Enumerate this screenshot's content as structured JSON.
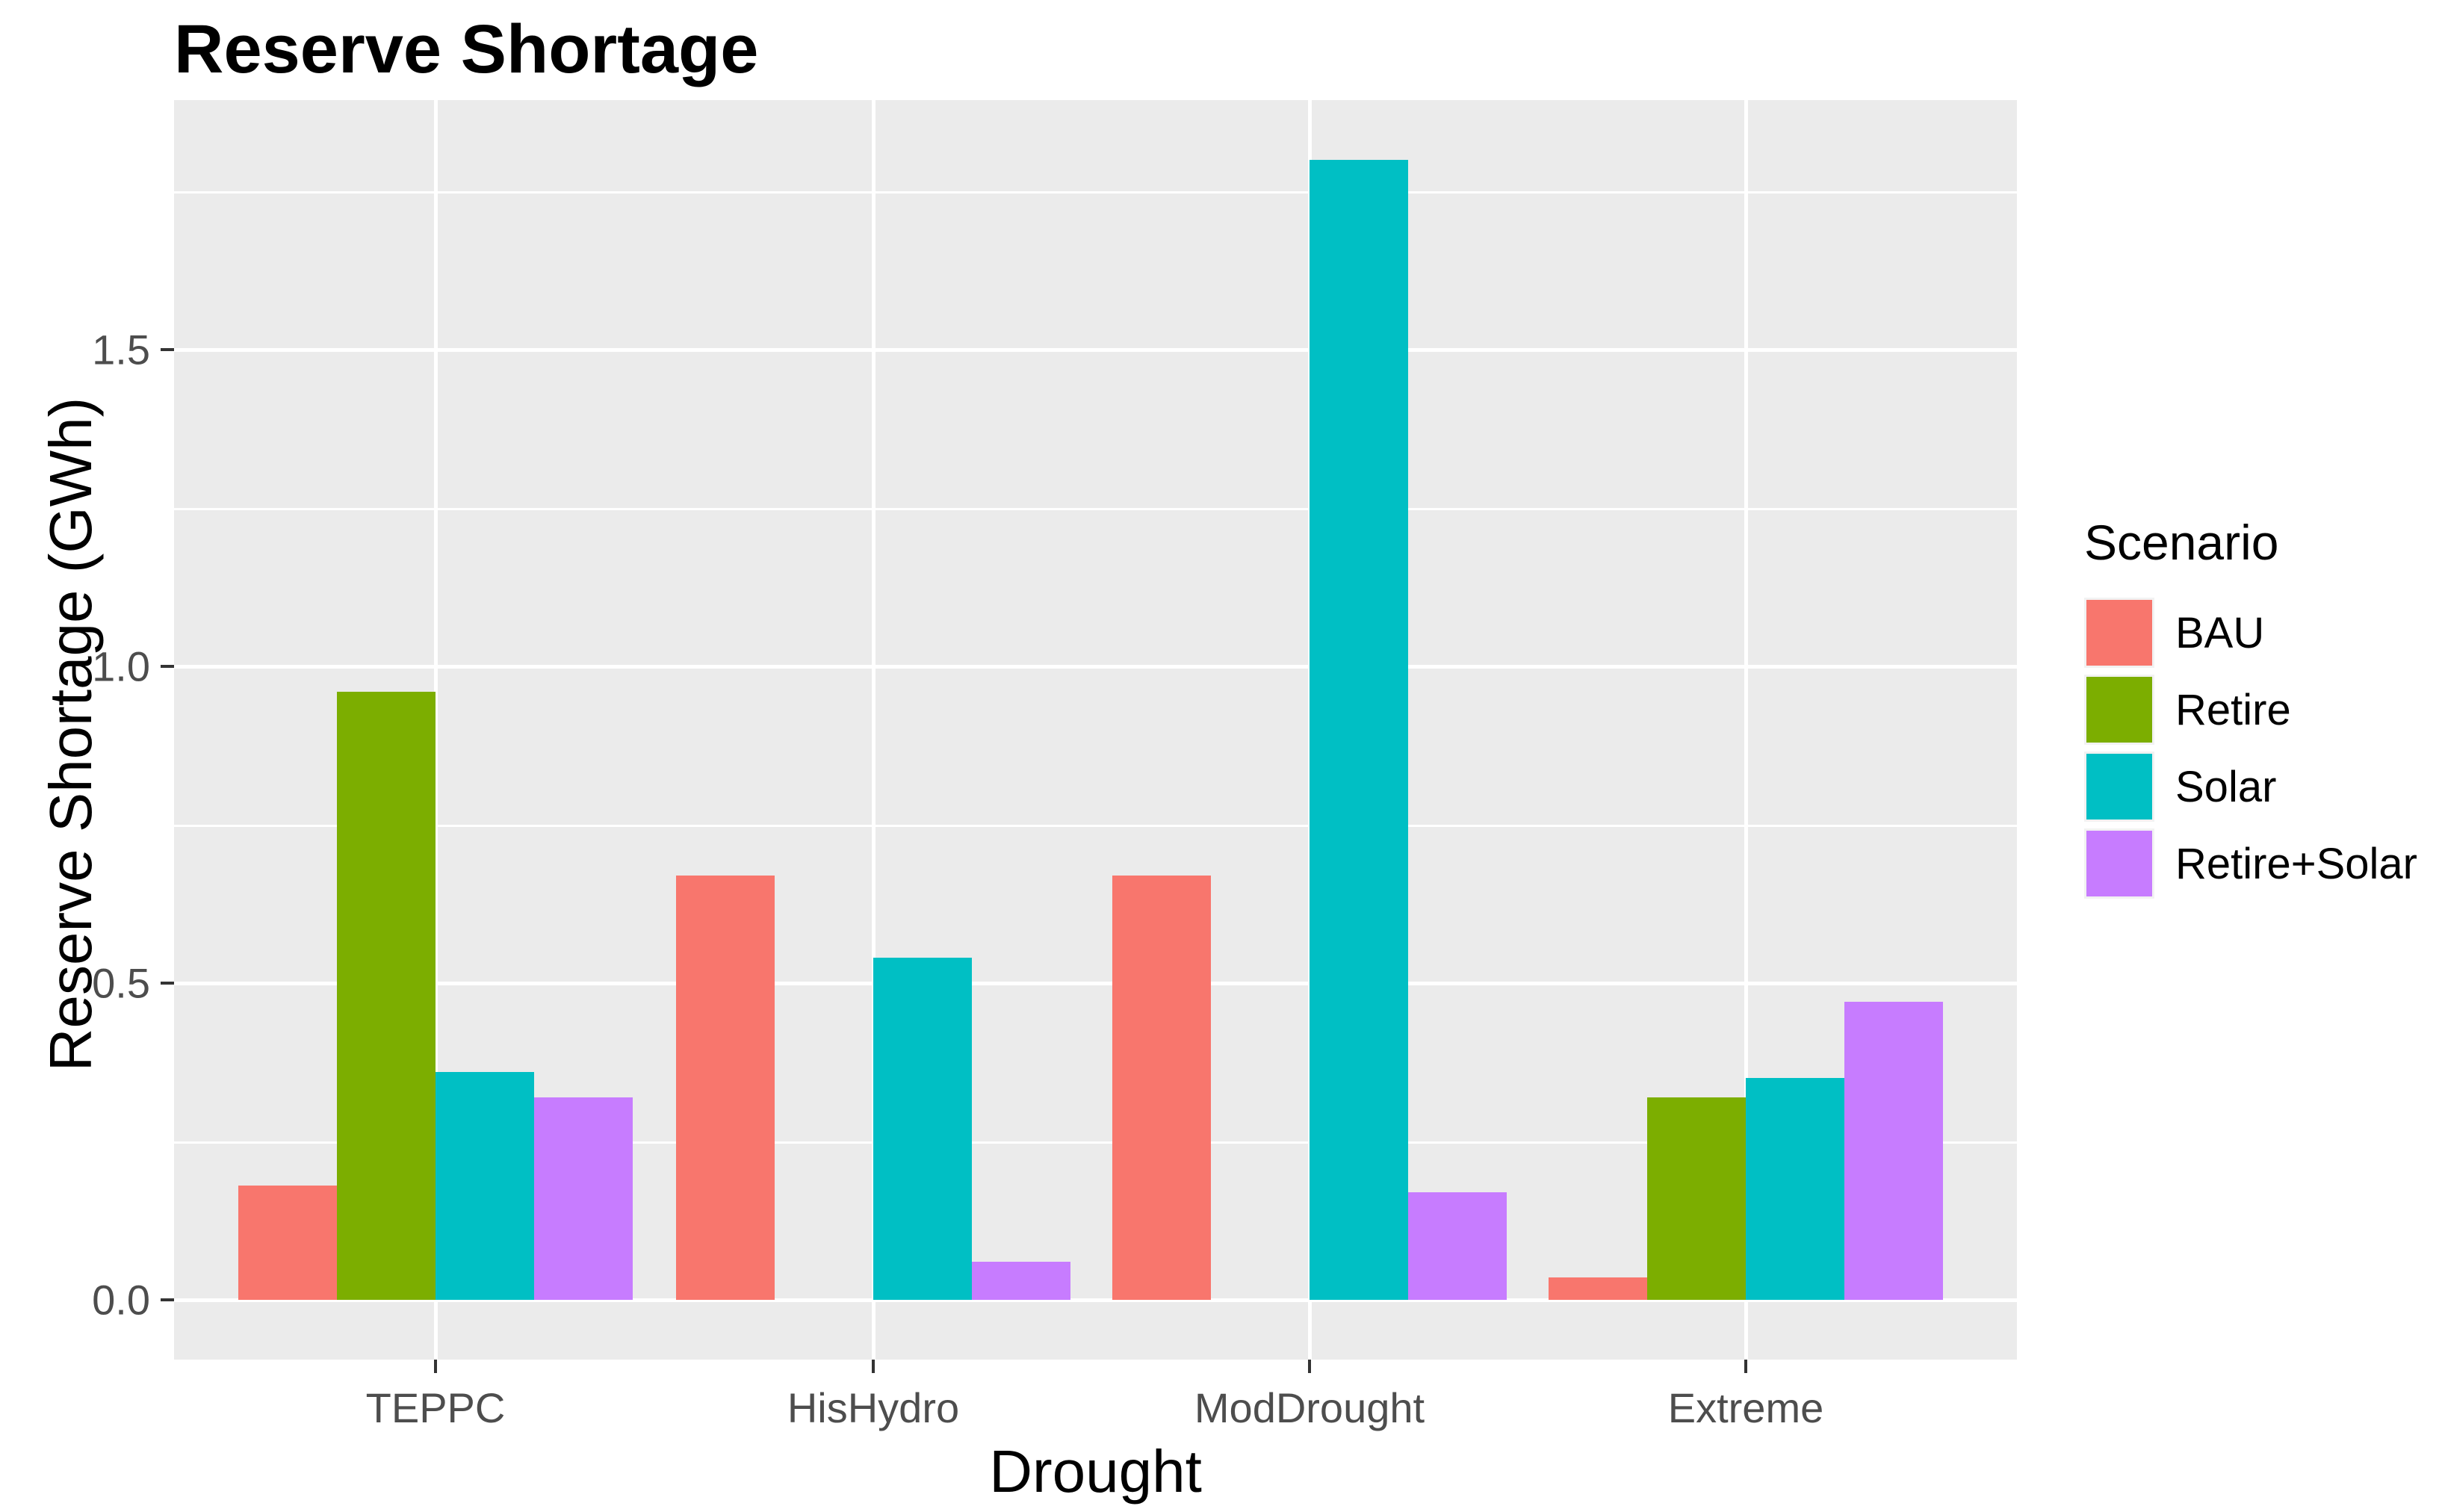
{
  "chart_data": {
    "type": "bar",
    "title": "Reserve Shortage",
    "xlabel": "Drought",
    "ylabel": "Reserve Shortage (GWh)",
    "categories": [
      "TEPPC",
      "HisHydro",
      "ModDrought",
      "Extreme"
    ],
    "series": [
      {
        "name": "BAU",
        "color": "#F8766D",
        "values": [
          0.18,
          0.67,
          0.67,
          0.035
        ]
      },
      {
        "name": "Retire",
        "color": "#7CAE00",
        "values": [
          0.96,
          0,
          0,
          0.32
        ]
      },
      {
        "name": "Solar",
        "color": "#00BFC4",
        "values": [
          0.36,
          0.54,
          1.8,
          0.35
        ]
      },
      {
        "name": "Retire+Solar",
        "color": "#C77CFF",
        "values": [
          0.32,
          0.06,
          0.17,
          0.47
        ]
      }
    ],
    "ylim": [
      0,
      1.89
    ],
    "y_ticks": [
      {
        "label": "0.0",
        "value": 0.0
      },
      {
        "label": "0.5",
        "value": 0.5
      },
      {
        "label": "1.0",
        "value": 1.0
      },
      {
        "label": "1.5",
        "value": 1.5
      }
    ],
    "y_minor_gridlines": [
      0.25,
      0.75,
      1.25,
      1.75
    ],
    "legend_title": "Scenario",
    "legend_position": "right",
    "grid": true,
    "panel_background": "#EBEBEB",
    "gridline_color": "#FFFFFF",
    "tick_text_color": "#4D4D4D"
  }
}
